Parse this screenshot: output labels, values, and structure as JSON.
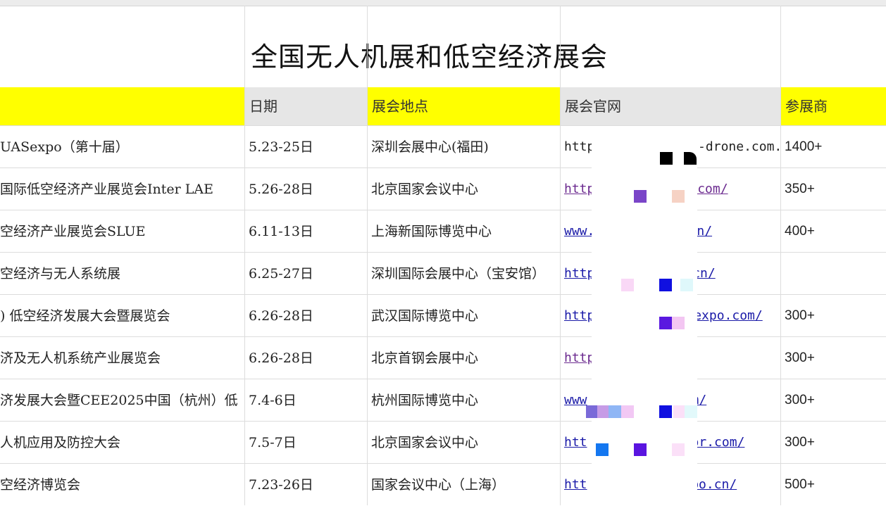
{
  "sheet": {
    "title": "全国无人机展和低空经济展会",
    "headers": {
      "name": "",
      "date": "日期",
      "venue": "展会地点",
      "website": "展会官网",
      "exhibitors": "参展商"
    },
    "rows": [
      {
        "name": "UASexpo（第十届）",
        "date": "5.23-25日",
        "venue": "深圳会展中心(福田)",
        "url_a": "https://www",
        "url_b": "a-drone.com.",
        "exhibitors": "1400+"
      },
      {
        "name": " 国际低空经济产业展览会Inter LAE",
        "date": "5.26-28日",
        "venue": "北京国家会议中心",
        "url_a": "http://ww",
        "url_b": "y.com/",
        "exhibitors": "350+"
      },
      {
        "name": "空经济产业展览会SLUE",
        "date": "6.11-13日",
        "venue": "上海新国际博览中心",
        "url_a": "www.uav",
        "url_b": "m.cn/",
        "exhibitors": "400+"
      },
      {
        "name": "空经济与无人系统展",
        "date": "6.25-27日",
        "venue": "深圳国际会展中心（宝安馆）",
        "url_a": "http:",
        "url_b": "cn/",
        "exhibitors": ""
      },
      {
        "name": ") 低空经济发展大会暨展览会",
        "date": "6.26-28日",
        "venue": "武汉国际博览中心",
        "url_a": "http",
        "url_b": "gexpo.com/",
        "exhibitors": "300+"
      },
      {
        "name": "济及无人机系统产业展览会",
        "date": "6.26-28日",
        "venue": "北京首钢会展中心",
        "url_a": "http",
        "url_b": "e",
        "exhibitors": "300+"
      },
      {
        "name": "济发展大会暨CEE2025中国（杭州）低",
        "date": "7.4-6日",
        "venue": "杭州国际博览中心",
        "url_a": "www",
        "url_b": "m/",
        "exhibitors": "300+"
      },
      {
        "name": "人机应用及防控大会",
        "date": "7.5-7日",
        "venue": "北京国家会议中心",
        "url_a": "htt",
        "url_b": "or.com/",
        "exhibitors": "300+"
      },
      {
        "name": "空经济博览会",
        "date": "7.23-26日",
        "venue": "国家会议中心（上海）",
        "url_a": "htt",
        "url_b": "expo.cn/",
        "exhibitors": "500+"
      }
    ]
  }
}
